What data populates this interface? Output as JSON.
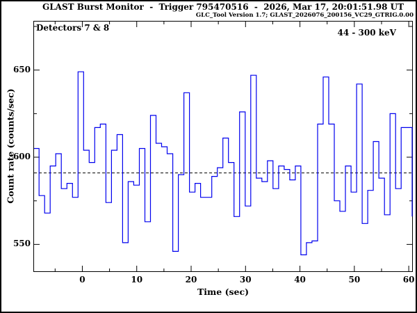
{
  "header": {
    "title": "GLAST Burst Monitor  -  Trigger 795470516  -  2026, Mar 17, 20:01:51.98 UT",
    "subtitle": "GLC_Tool Version 1.7; GLAST_2026076_200156_VC29_GTRIG.0.00"
  },
  "plot": {
    "detectors_label": "Detectors 7 & 8",
    "energy_range_label": "44 - 300 keV"
  },
  "colors": {
    "curve": "#0000ee",
    "axes": "#000000",
    "background": "#ffffff"
  },
  "chart_data": {
    "type": "line",
    "style": "step-histogram",
    "title": "GLAST Burst Monitor  -  Trigger 795470516  -  2026, Mar 17, 20:01:51.98 UT",
    "xlabel": "Time (sec)",
    "ylabel": "Count rate (counts/sec)",
    "xlim": [
      -9,
      60.75
    ],
    "ylim": [
      534.2,
      678.2
    ],
    "x_ticks": [
      0,
      10,
      20,
      30,
      40,
      50,
      60
    ],
    "x_minor_ticks": [
      -5,
      5,
      15,
      25,
      35,
      45,
      55
    ],
    "y_ticks": [
      550,
      600,
      650
    ],
    "y_minor_ticks": [
      575,
      625,
      675
    ],
    "grid": false,
    "background_level_dashed": 591,
    "bin_start": -8.98,
    "bin_width": 1.024,
    "rates": [
      605,
      578,
      568,
      595,
      602,
      582,
      585,
      577,
      649,
      604,
      597,
      617,
      619,
      574,
      604,
      613,
      551,
      586,
      584,
      605,
      563,
      624,
      608,
      606,
      602,
      546,
      590,
      637,
      580,
      585,
      577,
      577,
      589,
      594,
      611,
      597,
      566,
      626,
      572,
      647,
      588,
      586,
      598,
      582,
      595,
      593,
      587,
      595,
      544,
      551,
      552,
      619,
      646,
      619,
      575,
      569,
      595,
      580,
      642,
      562,
      581,
      609,
      588,
      567,
      625,
      582,
      617,
      617
    ],
    "right_edge_value": 566,
    "legend": "none"
  }
}
